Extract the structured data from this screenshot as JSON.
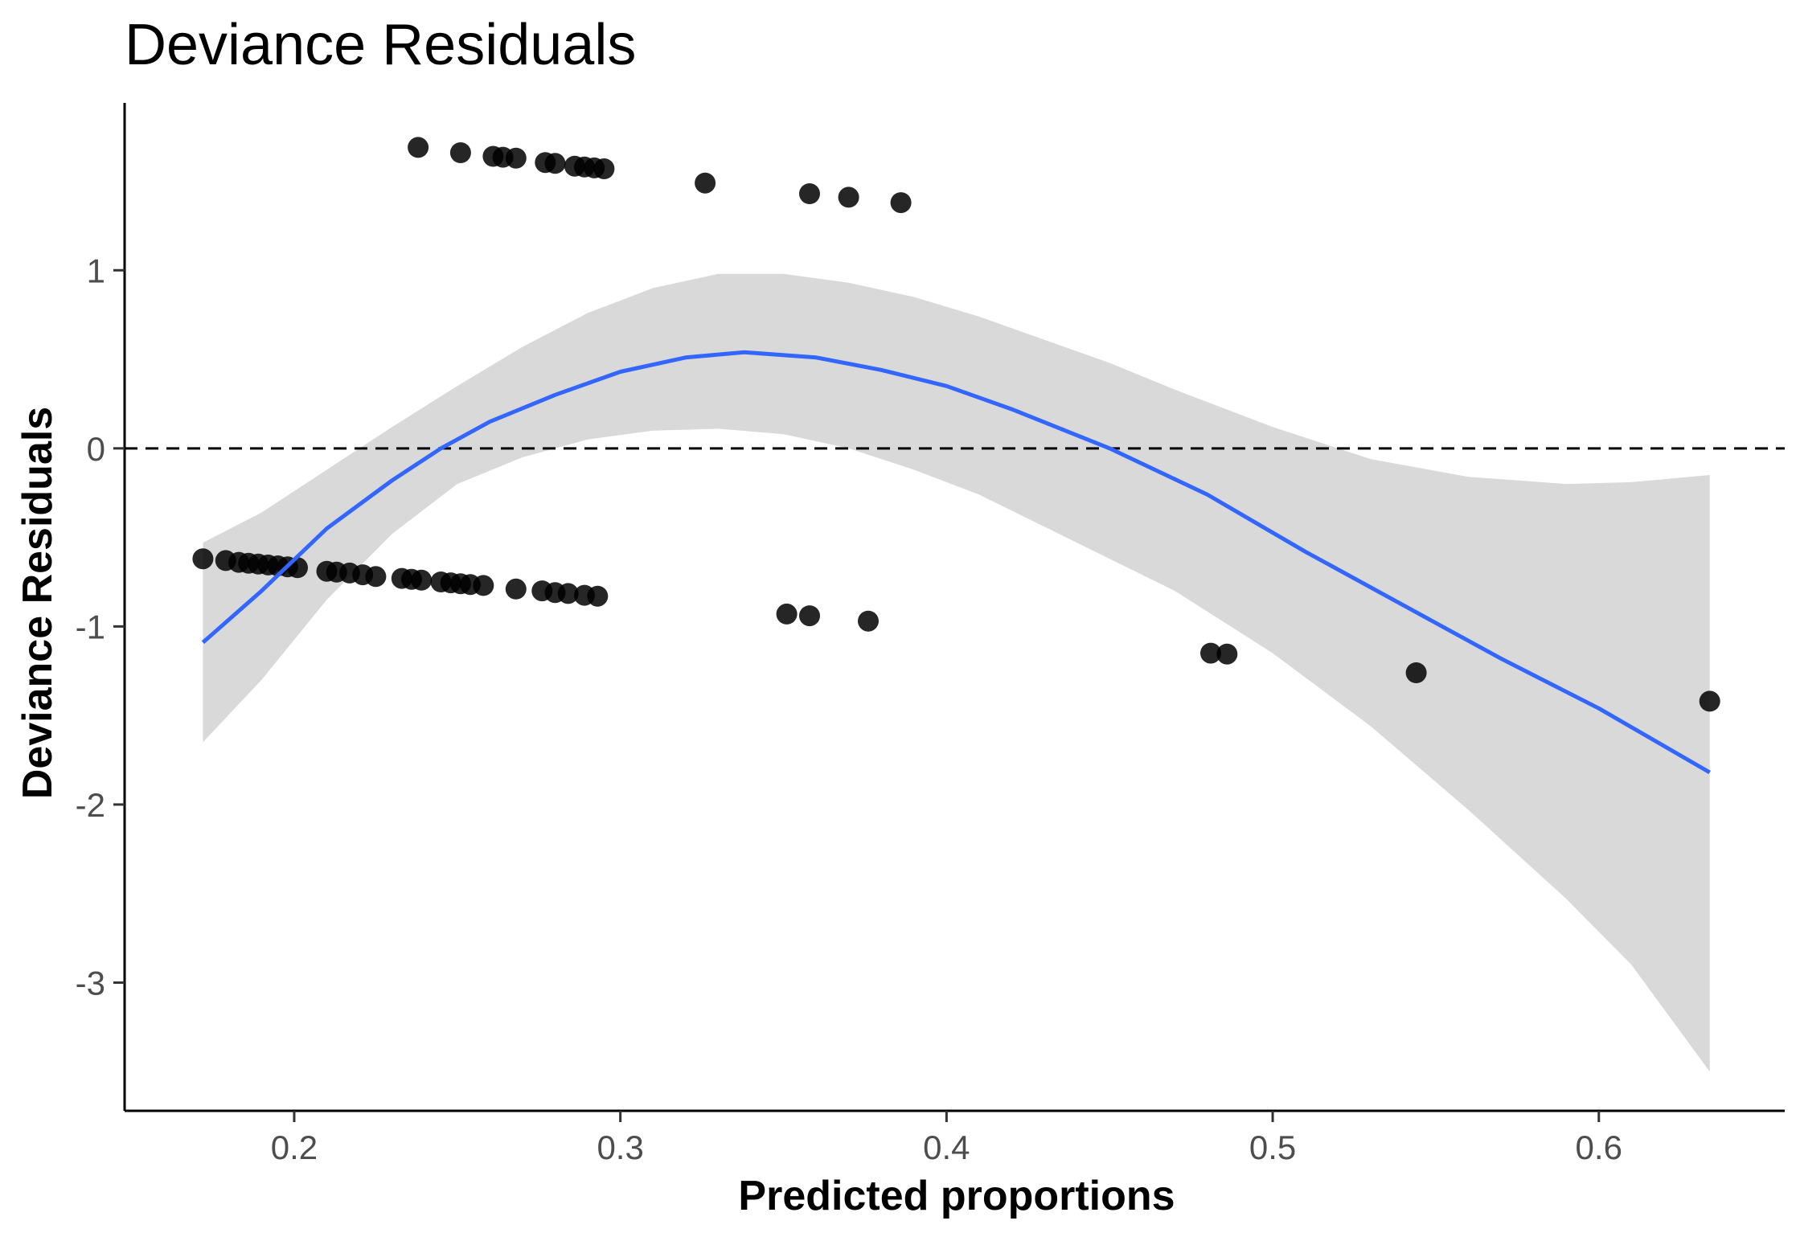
{
  "chart_data": {
    "type": "scatter",
    "title": "Deviance Residuals",
    "xlabel": "Predicted proportions",
    "ylabel": "Deviance Residuals",
    "xlim": [
      0.148,
      0.657
    ],
    "ylim": [
      -3.72,
      1.94
    ],
    "x_ticks": [
      {
        "value": 0.2,
        "label": "0.2"
      },
      {
        "value": 0.3,
        "label": "0.3"
      },
      {
        "value": 0.4,
        "label": "0.4"
      },
      {
        "value": 0.5,
        "label": "0.5"
      },
      {
        "value": 0.6,
        "label": "0.6"
      }
    ],
    "y_ticks": [
      {
        "value": 1,
        "label": "1"
      },
      {
        "value": 0,
        "label": "0"
      },
      {
        "value": -1,
        "label": "-1"
      },
      {
        "value": -2,
        "label": "-2"
      },
      {
        "value": -3,
        "label": "-3"
      }
    ],
    "grid": false,
    "legend": "none",
    "reference_line": {
      "y": 0,
      "style": "dashed",
      "color": "#000000"
    },
    "points_color": "#000000",
    "points": [
      {
        "x": 0.172,
        "y": -0.62
      },
      {
        "x": 0.179,
        "y": -0.63
      },
      {
        "x": 0.183,
        "y": -0.64
      },
      {
        "x": 0.186,
        "y": -0.645
      },
      {
        "x": 0.189,
        "y": -0.65
      },
      {
        "x": 0.192,
        "y": -0.655
      },
      {
        "x": 0.195,
        "y": -0.66
      },
      {
        "x": 0.198,
        "y": -0.665
      },
      {
        "x": 0.201,
        "y": -0.67
      },
      {
        "x": 0.21,
        "y": -0.69
      },
      {
        "x": 0.213,
        "y": -0.695
      },
      {
        "x": 0.217,
        "y": -0.7
      },
      {
        "x": 0.221,
        "y": -0.71
      },
      {
        "x": 0.225,
        "y": -0.72
      },
      {
        "x": 0.233,
        "y": -0.73
      },
      {
        "x": 0.236,
        "y": -0.735
      },
      {
        "x": 0.239,
        "y": -0.74
      },
      {
        "x": 0.245,
        "y": -0.75
      },
      {
        "x": 0.248,
        "y": -0.755
      },
      {
        "x": 0.251,
        "y": -0.76
      },
      {
        "x": 0.254,
        "y": -0.765
      },
      {
        "x": 0.258,
        "y": -0.77
      },
      {
        "x": 0.268,
        "y": -0.79
      },
      {
        "x": 0.276,
        "y": -0.8
      },
      {
        "x": 0.28,
        "y": -0.81
      },
      {
        "x": 0.284,
        "y": -0.815
      },
      {
        "x": 0.289,
        "y": -0.825
      },
      {
        "x": 0.293,
        "y": -0.83
      },
      {
        "x": 0.238,
        "y": 1.69
      },
      {
        "x": 0.251,
        "y": 1.66
      },
      {
        "x": 0.261,
        "y": 1.64
      },
      {
        "x": 0.264,
        "y": 1.635
      },
      {
        "x": 0.268,
        "y": 1.63
      },
      {
        "x": 0.277,
        "y": 1.605
      },
      {
        "x": 0.28,
        "y": 1.6
      },
      {
        "x": 0.286,
        "y": 1.585
      },
      {
        "x": 0.289,
        "y": 1.58
      },
      {
        "x": 0.292,
        "y": 1.575
      },
      {
        "x": 0.295,
        "y": 1.57
      },
      {
        "x": 0.326,
        "y": 1.49
      },
      {
        "x": 0.358,
        "y": 1.43
      },
      {
        "x": 0.37,
        "y": 1.41
      },
      {
        "x": 0.386,
        "y": 1.38
      },
      {
        "x": 0.351,
        "y": -0.93
      },
      {
        "x": 0.358,
        "y": -0.94
      },
      {
        "x": 0.376,
        "y": -0.97
      },
      {
        "x": 0.481,
        "y": -1.15
      },
      {
        "x": 0.486,
        "y": -1.155
      },
      {
        "x": 0.544,
        "y": -1.26
      },
      {
        "x": 0.634,
        "y": -1.42
      }
    ],
    "smooth_line_color": "#3366ff",
    "smooth_line": [
      {
        "x": 0.172,
        "y": -1.09
      },
      {
        "x": 0.19,
        "y": -0.8
      },
      {
        "x": 0.21,
        "y": -0.45
      },
      {
        "x": 0.23,
        "y": -0.18
      },
      {
        "x": 0.245,
        "y": 0.0
      },
      {
        "x": 0.26,
        "y": 0.15
      },
      {
        "x": 0.28,
        "y": 0.3
      },
      {
        "x": 0.3,
        "y": 0.43
      },
      {
        "x": 0.32,
        "y": 0.51
      },
      {
        "x": 0.338,
        "y": 0.54
      },
      {
        "x": 0.36,
        "y": 0.51
      },
      {
        "x": 0.38,
        "y": 0.44
      },
      {
        "x": 0.4,
        "y": 0.35
      },
      {
        "x": 0.42,
        "y": 0.22
      },
      {
        "x": 0.45,
        "y": 0.0
      },
      {
        "x": 0.48,
        "y": -0.26
      },
      {
        "x": 0.51,
        "y": -0.58
      },
      {
        "x": 0.54,
        "y": -0.88
      },
      {
        "x": 0.57,
        "y": -1.18
      },
      {
        "x": 0.6,
        "y": -1.46
      },
      {
        "x": 0.634,
        "y": -1.82
      }
    ],
    "band_color": "#d9d9d9",
    "confidence_band": [
      {
        "x": 0.172,
        "lower": -1.65,
        "upper": -0.53
      },
      {
        "x": 0.19,
        "lower": -1.3,
        "upper": -0.36
      },
      {
        "x": 0.21,
        "lower": -0.85,
        "upper": -0.12
      },
      {
        "x": 0.23,
        "lower": -0.48,
        "upper": 0.12
      },
      {
        "x": 0.25,
        "lower": -0.2,
        "upper": 0.35
      },
      {
        "x": 0.27,
        "lower": -0.05,
        "upper": 0.57
      },
      {
        "x": 0.29,
        "lower": 0.05,
        "upper": 0.76
      },
      {
        "x": 0.31,
        "lower": 0.1,
        "upper": 0.9
      },
      {
        "x": 0.33,
        "lower": 0.11,
        "upper": 0.98
      },
      {
        "x": 0.35,
        "lower": 0.08,
        "upper": 0.98
      },
      {
        "x": 0.37,
        "lower": 0.0,
        "upper": 0.93
      },
      {
        "x": 0.39,
        "lower": -0.12,
        "upper": 0.85
      },
      {
        "x": 0.41,
        "lower": -0.26,
        "upper": 0.74
      },
      {
        "x": 0.43,
        "lower": -0.44,
        "upper": 0.61
      },
      {
        "x": 0.45,
        "lower": -0.62,
        "upper": 0.48
      },
      {
        "x": 0.47,
        "lower": -0.8,
        "upper": 0.33
      },
      {
        "x": 0.5,
        "lower": -1.15,
        "upper": 0.12
      },
      {
        "x": 0.53,
        "lower": -1.56,
        "upper": -0.06
      },
      {
        "x": 0.56,
        "lower": -2.03,
        "upper": -0.16
      },
      {
        "x": 0.59,
        "lower": -2.53,
        "upper": -0.2
      },
      {
        "x": 0.61,
        "lower": -2.9,
        "upper": -0.19
      },
      {
        "x": 0.634,
        "lower": -3.5,
        "upper": -0.15
      }
    ]
  }
}
